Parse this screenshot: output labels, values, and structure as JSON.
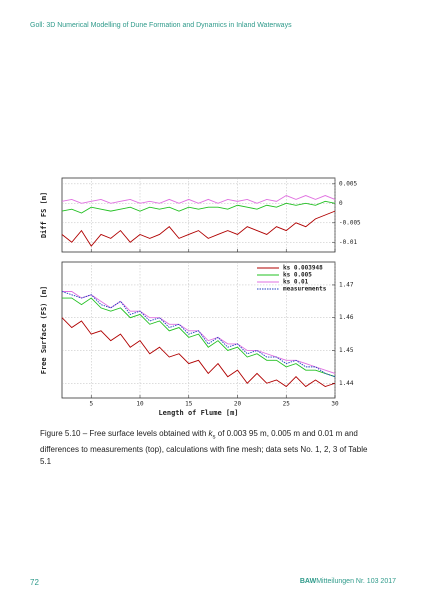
{
  "header": {
    "title": "Goll: 3D Numerical Modelling of Dune Formation and Dynamics in Inland Waterways"
  },
  "chart_data": [
    {
      "type": "line",
      "ylabel": "Diff FS [m]",
      "xlim": [
        2,
        30
      ],
      "xticks": [
        5,
        10,
        15,
        20,
        25,
        30
      ],
      "ylim": [
        -0.0125,
        0.0065
      ],
      "yticks": [
        0.005,
        0,
        -0.005,
        -0.01
      ],
      "grid": true,
      "ytick_side": "right",
      "x": [
        2,
        3,
        4,
        5,
        6,
        7,
        8,
        9,
        10,
        11,
        12,
        13,
        14,
        15,
        16,
        17,
        18,
        19,
        20,
        21,
        22,
        23,
        24,
        25,
        26,
        27,
        28,
        29,
        30
      ],
      "series": [
        {
          "color": "#b00000",
          "values": [
            -0.008,
            -0.01,
            -0.007,
            -0.011,
            -0.008,
            -0.009,
            -0.007,
            -0.01,
            -0.008,
            -0.009,
            -0.008,
            -0.006,
            -0.009,
            -0.008,
            -0.007,
            -0.009,
            -0.008,
            -0.007,
            -0.008,
            -0.006,
            -0.007,
            -0.008,
            -0.006,
            -0.007,
            -0.005,
            -0.006,
            -0.004,
            -0.003,
            -0.002
          ]
        },
        {
          "color": "#22c022",
          "values": [
            -0.002,
            -0.0015,
            -0.0025,
            -0.001,
            -0.0015,
            -0.002,
            -0.0015,
            -0.001,
            -0.002,
            -0.001,
            -0.0015,
            -0.001,
            -0.002,
            -0.001,
            -0.0015,
            -0.001,
            -0.001,
            -0.0015,
            -0.0005,
            -0.001,
            -0.0015,
            -0.0005,
            -0.001,
            0.0,
            -0.0005,
            0.0,
            -0.0005,
            0.0005,
            0.0
          ]
        },
        {
          "color": "#e070e0",
          "values": [
            0.0005,
            0.001,
            0.0,
            0.0005,
            0.001,
            0.0,
            0.0005,
            0.001,
            0.0,
            0.0005,
            0.0,
            0.001,
            0.0,
            0.001,
            0.0,
            0.001,
            0.0,
            0.001,
            0.0005,
            0.001,
            0.0,
            0.001,
            0.0005,
            0.002,
            0.001,
            0.002,
            0.001,
            0.002,
            0.001
          ]
        }
      ]
    },
    {
      "type": "line",
      "ylabel": "Free Surface (FS) [m]",
      "xlabel": "Length of Flume [m]",
      "xlim": [
        2,
        30
      ],
      "xticks": [
        5,
        10,
        15,
        20,
        25,
        30
      ],
      "ylim": [
        1.4355,
        1.477
      ],
      "yticks": [
        1.47,
        1.46,
        1.45,
        1.44
      ],
      "grid": true,
      "ytick_side": "right",
      "legend": "upper right",
      "x": [
        2,
        3,
        4,
        5,
        6,
        7,
        8,
        9,
        10,
        11,
        12,
        13,
        14,
        15,
        16,
        17,
        18,
        19,
        20,
        21,
        22,
        23,
        24,
        25,
        26,
        27,
        28,
        29,
        30
      ],
      "series": [
        {
          "name": "ks 0.003948",
          "color": "#b00000",
          "values": [
            1.46,
            1.457,
            1.459,
            1.455,
            1.456,
            1.453,
            1.455,
            1.451,
            1.453,
            1.449,
            1.451,
            1.448,
            1.449,
            1.446,
            1.447,
            1.443,
            1.446,
            1.442,
            1.444,
            1.44,
            1.443,
            1.44,
            1.441,
            1.439,
            1.442,
            1.439,
            1.441,
            1.439,
            1.44
          ]
        },
        {
          "name": "ks 0.005",
          "color": "#22c022",
          "values": [
            1.466,
            1.466,
            1.464,
            1.466,
            1.463,
            1.462,
            1.463,
            1.46,
            1.461,
            1.458,
            1.459,
            1.456,
            1.457,
            1.454,
            1.455,
            1.451,
            1.453,
            1.45,
            1.451,
            1.448,
            1.449,
            1.447,
            1.447,
            1.445,
            1.446,
            1.444,
            1.444,
            1.443,
            1.442
          ]
        },
        {
          "name": "ks 0.01",
          "color": "#e070e0",
          "values": [
            1.468,
            1.468,
            1.466,
            1.467,
            1.465,
            1.463,
            1.465,
            1.462,
            1.462,
            1.46,
            1.46,
            1.458,
            1.458,
            1.456,
            1.456,
            1.453,
            1.454,
            1.452,
            1.452,
            1.45,
            1.45,
            1.449,
            1.448,
            1.447,
            1.447,
            1.446,
            1.445,
            1.444,
            1.443
          ]
        },
        {
          "name": "measurements",
          "color": "#2040c0",
          "dashed": true,
          "values": [
            1.468,
            1.467,
            1.466,
            1.467,
            1.464,
            1.463,
            1.465,
            1.461,
            1.462,
            1.459,
            1.46,
            1.457,
            1.458,
            1.455,
            1.456,
            1.452,
            1.454,
            1.451,
            1.452,
            1.449,
            1.45,
            1.448,
            1.448,
            1.446,
            1.447,
            1.445,
            1.445,
            1.443,
            1.442
          ]
        }
      ]
    }
  ],
  "caption": {
    "lead": "Figure 5.10 – Free surface levels obtained with ",
    "symbol": "k",
    "subscript": "s",
    "rest": " of 0.003 95 m, 0.005 m and 0.01 m and differences to measurements (top), calculations with fine mesh; data sets No. 1, 2, 3 of Table 5.1"
  },
  "footer": {
    "page": "72",
    "brand": "BAW",
    "publication": "Mitteilungen Nr. 103 2017"
  }
}
